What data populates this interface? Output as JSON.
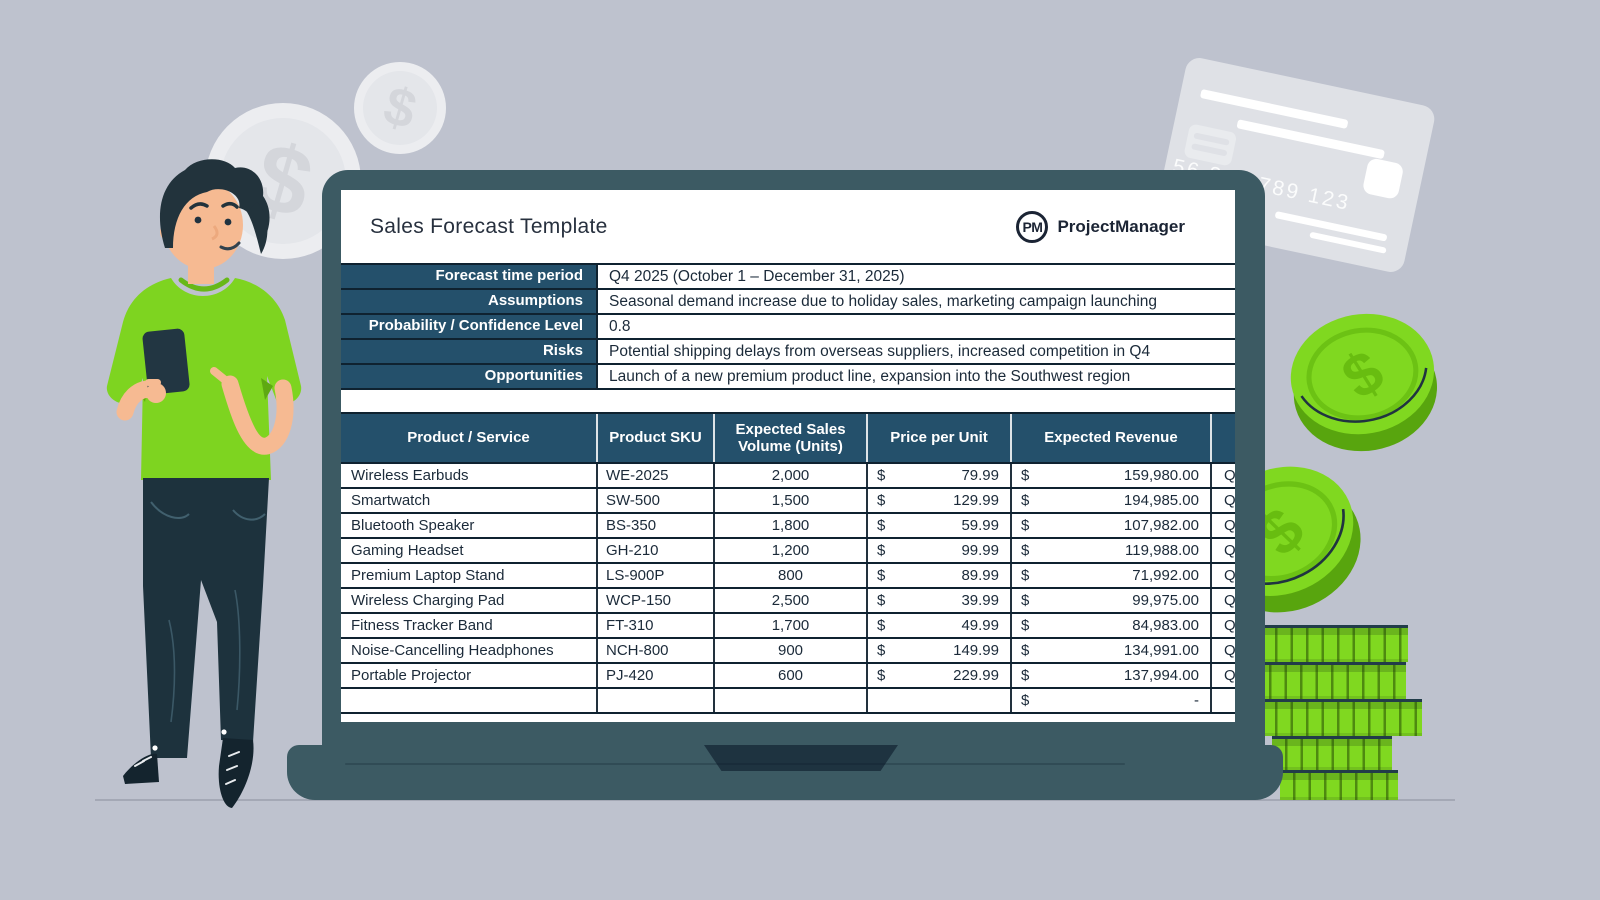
{
  "scene": {
    "background": "#bec2ce",
    "laptop_teal": "#3c5a63",
    "dark_navy": "#1e3340",
    "table_header_blue": "#24506b",
    "money_green": "#7ed81f"
  },
  "sheet": {
    "title": "Sales Forecast Template",
    "logo": {
      "badge": "PM",
      "name": "ProjectManager"
    },
    "info_rows": [
      {
        "label": "Forecast time period",
        "value": "Q4 2025 (October 1 – December 31, 2025)"
      },
      {
        "label": "Assumptions",
        "value": "Seasonal demand increase due to holiday sales, marketing campaign launching"
      },
      {
        "label": "Probability / Confidence Level",
        "value": "0.8"
      },
      {
        "label": "Risks",
        "value": "Potential shipping delays from overseas suppliers, increased competition in Q4"
      },
      {
        "label": "Opportunities",
        "value": "Launch of a new premium product line, expansion into the Southwest region"
      }
    ],
    "table": {
      "columns": [
        "Product / Service",
        "Product SKU",
        "Expected Sales Volume (Units)",
        "Price per Unit",
        "Expected Revenue",
        ""
      ],
      "currency": "$",
      "rows": [
        {
          "product": "Wireless Earbuds",
          "sku": "WE-2025",
          "volume": "2,000",
          "price": "79.99",
          "revenue": "159,980.00",
          "next_col_fragment": "Q"
        },
        {
          "product": "Smartwatch",
          "sku": "SW-500",
          "volume": "1,500",
          "price": "129.99",
          "revenue": "194,985.00",
          "next_col_fragment": "Q"
        },
        {
          "product": "Bluetooth Speaker",
          "sku": "BS-350",
          "volume": "1,800",
          "price": "59.99",
          "revenue": "107,982.00",
          "next_col_fragment": "Q"
        },
        {
          "product": "Gaming Headset",
          "sku": "GH-210",
          "volume": "1,200",
          "price": "99.99",
          "revenue": "119,988.00",
          "next_col_fragment": "Q"
        },
        {
          "product": "Premium Laptop Stand",
          "sku": "LS-900P",
          "volume": "800",
          "price": "89.99",
          "revenue": "71,992.00",
          "next_col_fragment": "Q"
        },
        {
          "product": "Wireless Charging Pad",
          "sku": "WCP-150",
          "volume": "2,500",
          "price": "39.99",
          "revenue": "99,975.00",
          "next_col_fragment": "Q"
        },
        {
          "product": "Fitness Tracker Band",
          "sku": "FT-310",
          "volume": "1,700",
          "price": "49.99",
          "revenue": "84,983.00",
          "next_col_fragment": "Q"
        },
        {
          "product": "Noise-Cancelling Headphones",
          "sku": "NCH-800",
          "volume": "900",
          "price": "149.99",
          "revenue": "134,991.00",
          "next_col_fragment": "Q"
        },
        {
          "product": "Portable Projector",
          "sku": "PJ-420",
          "volume": "600",
          "price": "229.99",
          "revenue": "137,994.00",
          "next_col_fragment": "Q"
        }
      ],
      "footer": {
        "currency": "$",
        "revenue": "-"
      }
    }
  },
  "decor": {
    "card_number": "56 367 789 123",
    "coin_symbol": "$"
  }
}
